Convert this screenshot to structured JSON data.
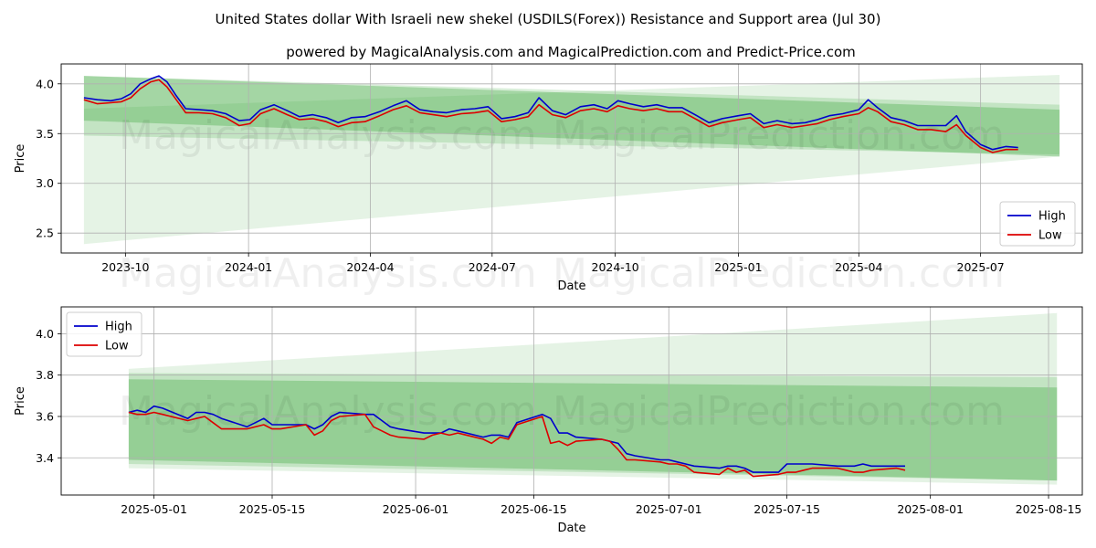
{
  "page": {
    "title": "United States dollar With Israeli new shekel (USDILS(Forex)) Resistance and Support area (Jul 30)",
    "subtitle": "powered by MagicalAnalysis.com and MagicalPrediction.com and Predict-Price.com",
    "watermarks": [
      "MagicalAnalysis.com",
      "MagicalPrediction.com"
    ]
  },
  "colors": {
    "high": "#0000cc",
    "low": "#dd0000",
    "band": "#2ca02c",
    "grid": "#b0b0b0"
  },
  "chart_data": [
    {
      "type": "line",
      "xlabel": "Date",
      "ylabel": "Price",
      "x_ticks": [
        "2023-10",
        "2024-01",
        "2024-04",
        "2024-07",
        "2024-10",
        "2025-01",
        "2025-04",
        "2025-07"
      ],
      "y_ticks": [
        "2.5",
        "3.0",
        "3.5",
        "4.0"
      ],
      "xlim": [
        "2023-08-14",
        "2025-09-15"
      ],
      "ylim": [
        2.3,
        4.2
      ],
      "grid": true,
      "legend": {
        "position": "bottom-right",
        "entries": [
          "High",
          "Low"
        ]
      },
      "bands": [
        {
          "x": [
            "2023-08-31",
            "2025-08-29"
          ],
          "upper": [
            4.08,
            3.74
          ],
          "lower": [
            3.63,
            3.27
          ],
          "opacity": 0.3
        },
        {
          "x": [
            "2023-08-31",
            "2025-08-29"
          ],
          "upper": [
            4.08,
            3.79
          ],
          "lower": [
            3.48,
            3.29
          ],
          "opacity": 0.18
        },
        {
          "x": [
            "2023-08-31",
            "2025-08-29"
          ],
          "upper": [
            3.75,
            4.09
          ],
          "lower": [
            2.39,
            3.27
          ],
          "opacity": 0.12
        }
      ],
      "series": [
        {
          "name": "High",
          "x": [
            "2023-08-31",
            "2023-09-10",
            "2023-09-20",
            "2023-09-28",
            "2023-10-05",
            "2023-10-12",
            "2023-10-20",
            "2023-10-26",
            "2023-11-01",
            "2023-11-08",
            "2023-11-15",
            "2023-11-25",
            "2023-12-05",
            "2023-12-15",
            "2023-12-25",
            "2024-01-02",
            "2024-01-10",
            "2024-01-20",
            "2024-01-30",
            "2024-02-08",
            "2024-02-18",
            "2024-02-28",
            "2024-03-08",
            "2024-03-18",
            "2024-03-28",
            "2024-04-08",
            "2024-04-18",
            "2024-04-28",
            "2024-05-08",
            "2024-05-18",
            "2024-05-28",
            "2024-06-08",
            "2024-06-18",
            "2024-06-28",
            "2024-07-08",
            "2024-07-18",
            "2024-07-28",
            "2024-08-05",
            "2024-08-15",
            "2024-08-25",
            "2024-09-05",
            "2024-09-15",
            "2024-09-25",
            "2024-10-03",
            "2024-10-12",
            "2024-10-22",
            "2024-11-01",
            "2024-11-10",
            "2024-11-20",
            "2024-12-01",
            "2024-12-10",
            "2024-12-20",
            "2025-01-01",
            "2025-01-10",
            "2025-01-20",
            "2025-01-30",
            "2025-02-10",
            "2025-02-20",
            "2025-03-01",
            "2025-03-10",
            "2025-03-20",
            "2025-04-01",
            "2025-04-08",
            "2025-04-15",
            "2025-04-25",
            "2025-05-05",
            "2025-05-15",
            "2025-05-25",
            "2025-06-05",
            "2025-06-13",
            "2025-06-20",
            "2025-07-01",
            "2025-07-10",
            "2025-07-20",
            "2025-07-29"
          ],
          "values": [
            3.86,
            3.84,
            3.83,
            3.85,
            3.9,
            4.0,
            4.05,
            4.08,
            4.02,
            3.88,
            3.75,
            3.74,
            3.73,
            3.7,
            3.63,
            3.64,
            3.74,
            3.79,
            3.73,
            3.67,
            3.69,
            3.66,
            3.61,
            3.66,
            3.67,
            3.72,
            3.78,
            3.83,
            3.74,
            3.72,
            3.71,
            3.74,
            3.75,
            3.77,
            3.65,
            3.67,
            3.71,
            3.86,
            3.73,
            3.69,
            3.77,
            3.79,
            3.75,
            3.83,
            3.8,
            3.77,
            3.79,
            3.76,
            3.76,
            3.68,
            3.61,
            3.65,
            3.68,
            3.7,
            3.6,
            3.63,
            3.6,
            3.61,
            3.64,
            3.68,
            3.7,
            3.74,
            3.84,
            3.76,
            3.66,
            3.63,
            3.58,
            3.58,
            3.58,
            3.68,
            3.52,
            3.39,
            3.34,
            3.37,
            3.36
          ]
        },
        {
          "name": "Low",
          "x": [
            "2023-08-31",
            "2023-09-10",
            "2023-09-20",
            "2023-09-28",
            "2023-10-05",
            "2023-10-12",
            "2023-10-20",
            "2023-10-26",
            "2023-11-01",
            "2023-11-08",
            "2023-11-15",
            "2023-11-25",
            "2023-12-05",
            "2023-12-15",
            "2023-12-25",
            "2024-01-02",
            "2024-01-10",
            "2024-01-20",
            "2024-01-30",
            "2024-02-08",
            "2024-02-18",
            "2024-02-28",
            "2024-03-08",
            "2024-03-18",
            "2024-03-28",
            "2024-04-08",
            "2024-04-18",
            "2024-04-28",
            "2024-05-08",
            "2024-05-18",
            "2024-05-28",
            "2024-06-08",
            "2024-06-18",
            "2024-06-28",
            "2024-07-08",
            "2024-07-18",
            "2024-07-28",
            "2024-08-05",
            "2024-08-15",
            "2024-08-25",
            "2024-09-05",
            "2024-09-15",
            "2024-09-25",
            "2024-10-03",
            "2024-10-12",
            "2024-10-22",
            "2024-11-01",
            "2024-11-10",
            "2024-11-20",
            "2024-12-01",
            "2024-12-10",
            "2024-12-20",
            "2025-01-01",
            "2025-01-10",
            "2025-01-20",
            "2025-01-30",
            "2025-02-10",
            "2025-02-20",
            "2025-03-01",
            "2025-03-10",
            "2025-03-20",
            "2025-04-01",
            "2025-04-08",
            "2025-04-15",
            "2025-04-25",
            "2025-05-05",
            "2025-05-15",
            "2025-05-25",
            "2025-06-05",
            "2025-06-13",
            "2025-06-20",
            "2025-07-01",
            "2025-07-10",
            "2025-07-20",
            "2025-07-29"
          ],
          "values": [
            3.84,
            3.8,
            3.81,
            3.82,
            3.86,
            3.95,
            4.02,
            4.04,
            3.97,
            3.84,
            3.71,
            3.71,
            3.7,
            3.66,
            3.58,
            3.6,
            3.7,
            3.75,
            3.69,
            3.64,
            3.65,
            3.62,
            3.57,
            3.61,
            3.62,
            3.68,
            3.74,
            3.78,
            3.71,
            3.69,
            3.67,
            3.7,
            3.71,
            3.73,
            3.62,
            3.64,
            3.67,
            3.79,
            3.69,
            3.66,
            3.73,
            3.75,
            3.72,
            3.78,
            3.75,
            3.73,
            3.75,
            3.72,
            3.72,
            3.64,
            3.57,
            3.61,
            3.64,
            3.66,
            3.56,
            3.59,
            3.56,
            3.58,
            3.6,
            3.64,
            3.67,
            3.7,
            3.76,
            3.72,
            3.62,
            3.59,
            3.54,
            3.54,
            3.52,
            3.59,
            3.48,
            3.36,
            3.31,
            3.34,
            3.34
          ]
        }
      ]
    },
    {
      "type": "line",
      "xlabel": "Date",
      "ylabel": "Price",
      "x_ticks": [
        "2025-05-01",
        "2025-05-15",
        "2025-06-01",
        "2025-06-15",
        "2025-07-01",
        "2025-07-15",
        "2025-08-01",
        "2025-08-15"
      ],
      "y_ticks": [
        "3.4",
        "3.6",
        "3.8",
        "4.0"
      ],
      "xlim": [
        "2025-04-20",
        "2025-08-19"
      ],
      "ylim": [
        3.22,
        4.13
      ],
      "grid": true,
      "legend": {
        "position": "top-left",
        "entries": [
          "High",
          "Low"
        ]
      },
      "bands": [
        {
          "x": [
            "2025-04-28",
            "2025-08-16"
          ],
          "upper": [
            3.78,
            3.74
          ],
          "lower": [
            3.39,
            3.29
          ],
          "opacity": 0.3
        },
        {
          "x": [
            "2025-04-28",
            "2025-08-16"
          ],
          "upper": [
            3.81,
            3.79
          ],
          "lower": [
            3.37,
            3.29
          ],
          "opacity": 0.18
        },
        {
          "x": [
            "2025-04-28",
            "2025-08-16"
          ],
          "upper": [
            3.83,
            4.1
          ],
          "lower": [
            3.35,
            3.27
          ],
          "opacity": 0.12
        }
      ],
      "series": [
        {
          "name": "High",
          "x": [
            "2025-04-28",
            "2025-04-29",
            "2025-04-30",
            "2025-05-01",
            "2025-05-02",
            "2025-05-05",
            "2025-05-06",
            "2025-05-07",
            "2025-05-08",
            "2025-05-09",
            "2025-05-12",
            "2025-05-13",
            "2025-05-14",
            "2025-05-15",
            "2025-05-16",
            "2025-05-19",
            "2025-05-20",
            "2025-05-21",
            "2025-05-22",
            "2025-05-23",
            "2025-05-26",
            "2025-05-27",
            "2025-05-28",
            "2025-05-29",
            "2025-05-30",
            "2025-06-02",
            "2025-06-03",
            "2025-06-04",
            "2025-06-05",
            "2025-06-06",
            "2025-06-09",
            "2025-06-10",
            "2025-06-11",
            "2025-06-12",
            "2025-06-13",
            "2025-06-16",
            "2025-06-17",
            "2025-06-18",
            "2025-06-19",
            "2025-06-20",
            "2025-06-23",
            "2025-06-24",
            "2025-06-25",
            "2025-06-26",
            "2025-06-27",
            "2025-06-30",
            "2025-07-01",
            "2025-07-02",
            "2025-07-03",
            "2025-07-04",
            "2025-07-07",
            "2025-07-08",
            "2025-07-09",
            "2025-07-10",
            "2025-07-11",
            "2025-07-14",
            "2025-07-15",
            "2025-07-16",
            "2025-07-17",
            "2025-07-18",
            "2025-07-21",
            "2025-07-22",
            "2025-07-23",
            "2025-07-24",
            "2025-07-25",
            "2025-07-28",
            "2025-07-29"
          ],
          "values": [
            3.62,
            3.63,
            3.62,
            3.65,
            3.64,
            3.59,
            3.62,
            3.62,
            3.61,
            3.59,
            3.55,
            3.57,
            3.59,
            3.56,
            3.56,
            3.56,
            3.54,
            3.56,
            3.6,
            3.62,
            3.61,
            3.61,
            3.58,
            3.55,
            3.54,
            3.52,
            3.52,
            3.52,
            3.54,
            3.53,
            3.5,
            3.51,
            3.51,
            3.5,
            3.57,
            3.61,
            3.59,
            3.52,
            3.52,
            3.5,
            3.49,
            3.48,
            3.47,
            3.42,
            3.41,
            3.39,
            3.39,
            3.38,
            3.37,
            3.36,
            3.35,
            3.36,
            3.36,
            3.35,
            3.33,
            3.33,
            3.37,
            3.37,
            3.37,
            3.37,
            3.36,
            3.36,
            3.36,
            3.37,
            3.36,
            3.36,
            3.36
          ]
        },
        {
          "name": "Low",
          "x": [
            "2025-04-28",
            "2025-04-29",
            "2025-04-30",
            "2025-05-01",
            "2025-05-02",
            "2025-05-05",
            "2025-05-06",
            "2025-05-07",
            "2025-05-08",
            "2025-05-09",
            "2025-05-12",
            "2025-05-13",
            "2025-05-14",
            "2025-05-15",
            "2025-05-16",
            "2025-05-19",
            "2025-05-20",
            "2025-05-21",
            "2025-05-22",
            "2025-05-23",
            "2025-05-26",
            "2025-05-27",
            "2025-05-28",
            "2025-05-29",
            "2025-05-30",
            "2025-06-02",
            "2025-06-03",
            "2025-06-04",
            "2025-06-05",
            "2025-06-06",
            "2025-06-09",
            "2025-06-10",
            "2025-06-11",
            "2025-06-12",
            "2025-06-13",
            "2025-06-16",
            "2025-06-17",
            "2025-06-18",
            "2025-06-19",
            "2025-06-20",
            "2025-06-23",
            "2025-06-24",
            "2025-06-25",
            "2025-06-26",
            "2025-06-27",
            "2025-06-30",
            "2025-07-01",
            "2025-07-02",
            "2025-07-03",
            "2025-07-04",
            "2025-07-07",
            "2025-07-08",
            "2025-07-09",
            "2025-07-10",
            "2025-07-11",
            "2025-07-14",
            "2025-07-15",
            "2025-07-16",
            "2025-07-17",
            "2025-07-18",
            "2025-07-21",
            "2025-07-22",
            "2025-07-23",
            "2025-07-24",
            "2025-07-25",
            "2025-07-28",
            "2025-07-29"
          ],
          "values": [
            3.62,
            3.61,
            3.61,
            3.62,
            3.61,
            3.58,
            3.59,
            3.6,
            3.57,
            3.54,
            3.54,
            3.55,
            3.56,
            3.54,
            3.54,
            3.56,
            3.51,
            3.53,
            3.58,
            3.6,
            3.61,
            3.55,
            3.53,
            3.51,
            3.5,
            3.49,
            3.51,
            3.52,
            3.51,
            3.52,
            3.49,
            3.47,
            3.5,
            3.49,
            3.56,
            3.6,
            3.47,
            3.48,
            3.46,
            3.48,
            3.49,
            3.48,
            3.44,
            3.39,
            3.39,
            3.38,
            3.37,
            3.37,
            3.36,
            3.33,
            3.32,
            3.35,
            3.33,
            3.34,
            3.31,
            3.32,
            3.33,
            3.33,
            3.34,
            3.35,
            3.35,
            3.34,
            3.33,
            3.33,
            3.34,
            3.35,
            3.34
          ]
        }
      ]
    }
  ]
}
